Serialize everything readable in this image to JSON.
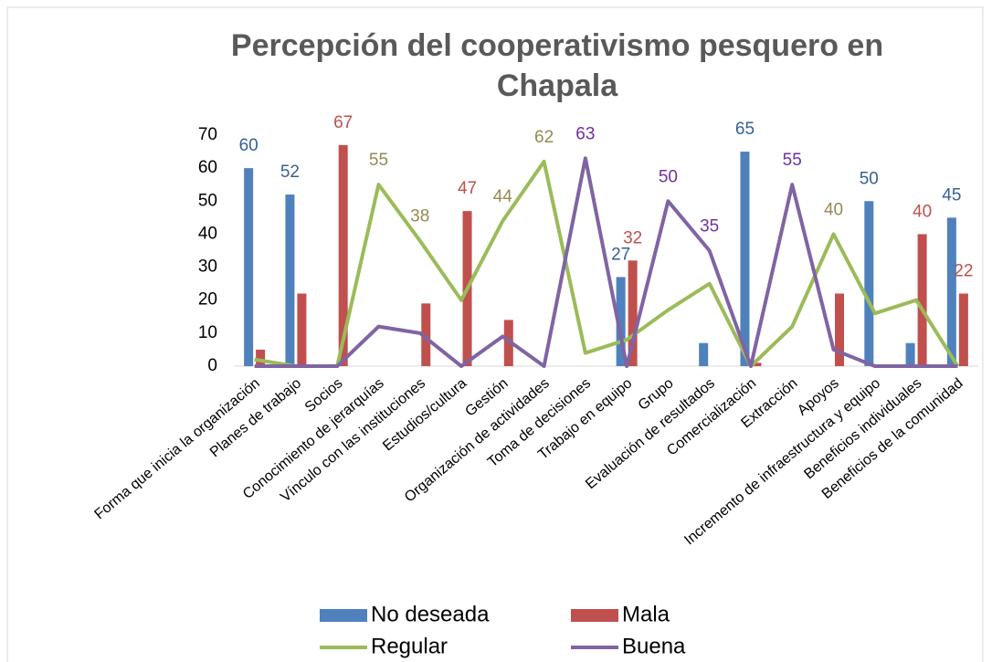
{
  "chart_data": {
    "type": "bar-line",
    "title": "Percepción del cooperativismo pesquero en Chapala",
    "categories": [
      "Forma que inicia la organización",
      "Planes de trabajo",
      "Socios",
      "Conocimiento de jerarquías",
      "Vínculo con las instituciones",
      "Estudios/cultura",
      "Gestión",
      "Organización de actividades",
      "Toma de decisiones",
      "Trabajo en equipo",
      "Grupo",
      "Evaluación de resultados",
      "Comercialización",
      "Extracción",
      "Apoyos",
      "Incremento de infraestructura y equipo",
      "Beneficios individuales",
      "Beneficios de la comunidad"
    ],
    "series": [
      {
        "name": "No deseada",
        "kind": "bar",
        "color": "#4f81bd",
        "label_color": "#376092",
        "values": [
          60,
          52,
          0,
          0,
          0,
          0,
          0,
          0,
          0,
          27,
          0,
          7,
          65,
          0,
          0,
          50,
          7,
          45
        ],
        "value_labels": [
          "60",
          "52",
          null,
          null,
          null,
          null,
          null,
          null,
          null,
          "27",
          null,
          null,
          "65",
          null,
          null,
          "50",
          null,
          "45"
        ]
      },
      {
        "name": "Mala",
        "kind": "bar",
        "color": "#c0504d",
        "label_color": "#c0504d",
        "values": [
          5,
          22,
          67,
          0,
          19,
          47,
          14,
          0,
          0,
          32,
          0,
          0,
          1,
          0,
          22,
          0,
          40,
          22
        ],
        "value_labels": [
          null,
          null,
          "67",
          null,
          null,
          "47",
          null,
          null,
          null,
          "32",
          null,
          null,
          null,
          null,
          null,
          null,
          "40",
          "22"
        ]
      },
      {
        "name": "Regular",
        "kind": "line",
        "color": "#9bbb59",
        "label_color": "#948a54",
        "values": [
          2,
          0,
          0,
          55,
          38,
          20,
          44,
          62,
          4,
          8,
          17,
          25,
          0,
          12,
          40,
          16,
          20,
          0
        ],
        "value_labels": [
          null,
          null,
          null,
          "55",
          "38",
          null,
          "44",
          "62",
          null,
          null,
          null,
          null,
          null,
          null,
          "40",
          null,
          null,
          null
        ]
      },
      {
        "name": "Buena",
        "kind": "line",
        "color": "#8064a2",
        "label_color": "#7030a0",
        "values": [
          0,
          0,
          0,
          12,
          10,
          0,
          9,
          0,
          63,
          0,
          50,
          35,
          0,
          55,
          5,
          0,
          0,
          0
        ],
        "value_labels": [
          null,
          null,
          null,
          null,
          null,
          null,
          null,
          null,
          "63",
          null,
          "50",
          "35",
          null,
          "55",
          null,
          null,
          null,
          null
        ]
      }
    ],
    "ylim": [
      0,
      70
    ],
    "yticks": [
      0,
      10,
      20,
      30,
      40,
      50,
      60,
      70
    ],
    "legend": "bottom"
  }
}
